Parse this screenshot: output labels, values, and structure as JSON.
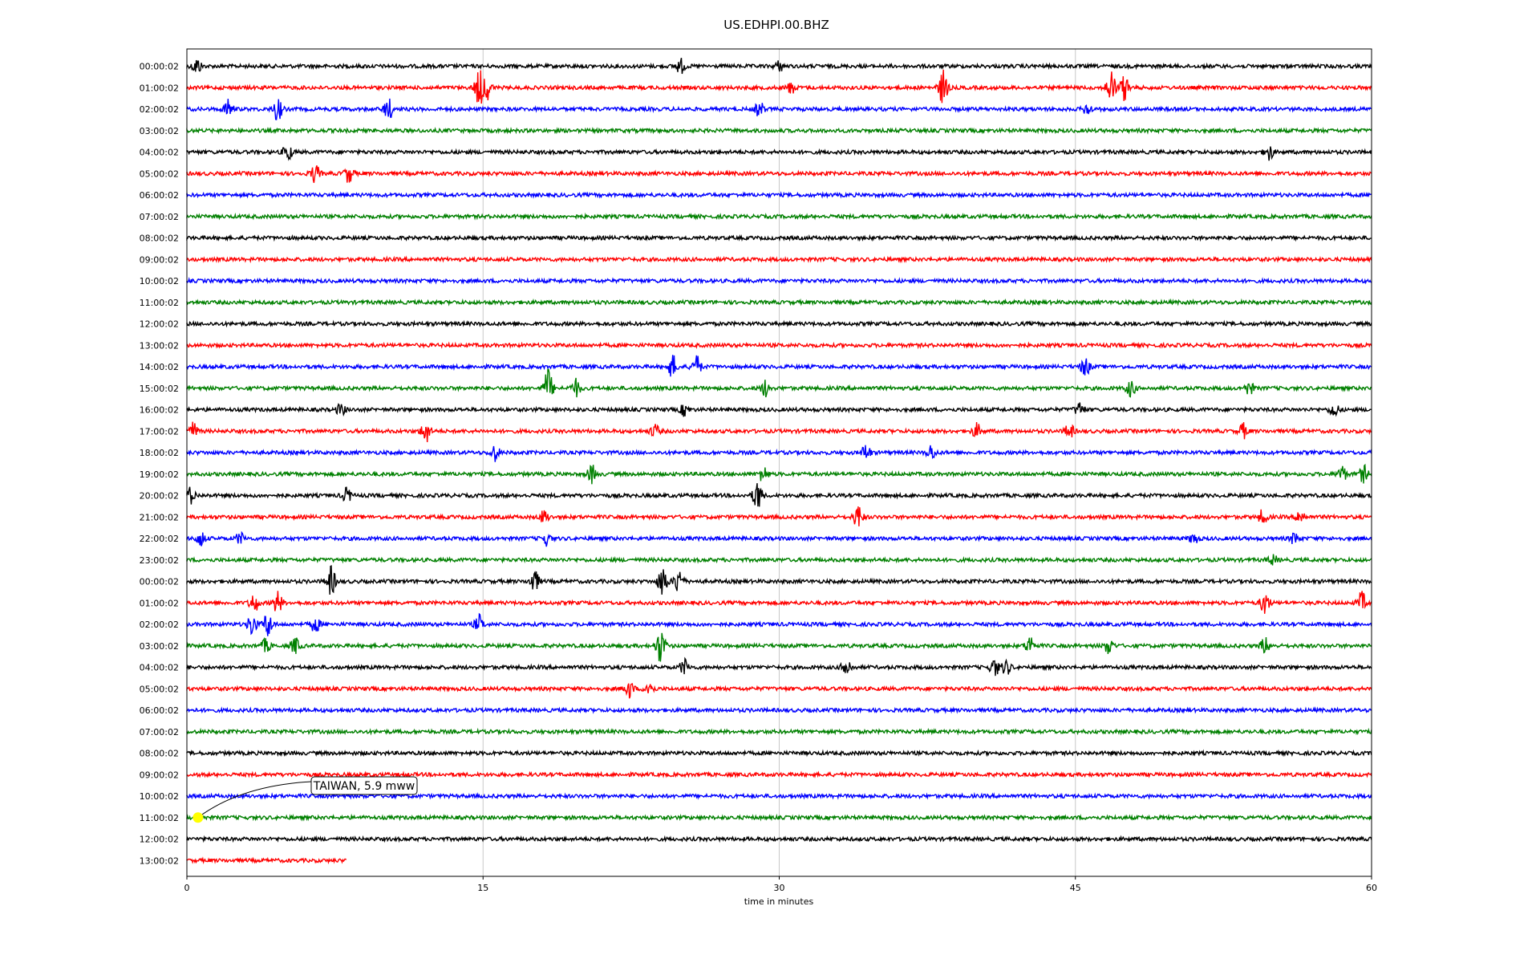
{
  "chart_data": {
    "type": "line",
    "title": "US.EDHPI.00.BHZ",
    "xlabel": "time in minutes",
    "ylabel": "",
    "xlim": [
      0,
      60
    ],
    "x_ticks": [
      "0",
      "15",
      "30",
      "45",
      "60"
    ],
    "x_tick_values": [
      0,
      15,
      30,
      45,
      60
    ],
    "grid": "vertical",
    "trace_colors": [
      "#000000",
      "#ff0000",
      "#0000ff",
      "#008000"
    ],
    "rows": [
      {
        "label": "00:00:02",
        "end": 60,
        "events": [
          [
            0.5,
            10
          ],
          [
            25,
            9
          ],
          [
            30,
            6
          ]
        ]
      },
      {
        "label": "01:00:02",
        "end": 60,
        "events": [
          [
            14.8,
            22
          ],
          [
            15.2,
            14
          ],
          [
            30.6,
            7
          ],
          [
            38.3,
            22
          ],
          [
            46.8,
            22
          ],
          [
            47.5,
            16
          ]
        ]
      },
      {
        "label": "02:00:02",
        "end": 60,
        "events": [
          [
            2.1,
            12
          ],
          [
            4.6,
            14
          ],
          [
            10.2,
            13
          ],
          [
            29,
            9
          ],
          [
            45.6,
            7
          ]
        ]
      },
      {
        "label": "03:00:02",
        "end": 60,
        "events": []
      },
      {
        "label": "04:00:02",
        "end": 60,
        "events": [
          [
            5.1,
            11
          ],
          [
            54.8,
            10
          ]
        ]
      },
      {
        "label": "05:00:02",
        "end": 60,
        "events": [
          [
            6.5,
            11
          ],
          [
            8.2,
            11
          ]
        ]
      },
      {
        "label": "06:00:02",
        "end": 60,
        "events": []
      },
      {
        "label": "07:00:02",
        "end": 60,
        "events": []
      },
      {
        "label": "08:00:02",
        "end": 60,
        "events": []
      },
      {
        "label": "09:00:02",
        "end": 60,
        "events": []
      },
      {
        "label": "10:00:02",
        "end": 60,
        "events": []
      },
      {
        "label": "11:00:02",
        "end": 60,
        "events": []
      },
      {
        "label": "12:00:02",
        "end": 60,
        "events": []
      },
      {
        "label": "13:00:02",
        "end": 60,
        "events": []
      },
      {
        "label": "14:00:02",
        "end": 60,
        "events": [
          [
            24.6,
            14
          ],
          [
            25.8,
            14
          ],
          [
            45.5,
            12
          ]
        ]
      },
      {
        "label": "15:00:02",
        "end": 60,
        "events": [
          [
            18.3,
            24
          ],
          [
            19.7,
            11
          ],
          [
            29.3,
            10
          ],
          [
            47.8,
            10
          ],
          [
            53.8,
            8
          ]
        ]
      },
      {
        "label": "16:00:02",
        "end": 60,
        "events": [
          [
            7.8,
            7
          ],
          [
            25.2,
            7
          ],
          [
            45.2,
            9
          ],
          [
            58.1,
            9
          ]
        ]
      },
      {
        "label": "17:00:02",
        "end": 60,
        "events": [
          [
            0.3,
            11
          ],
          [
            12.1,
            15
          ],
          [
            23.7,
            8
          ],
          [
            40,
            9
          ],
          [
            44.7,
            9
          ],
          [
            53.5,
            9
          ]
        ]
      },
      {
        "label": "18:00:02",
        "end": 60,
        "events": [
          [
            15.6,
            10
          ],
          [
            34.4,
            10
          ],
          [
            37.7,
            9
          ]
        ]
      },
      {
        "label": "19:00:02",
        "end": 60,
        "events": [
          [
            20.5,
            11
          ],
          [
            29.2,
            10
          ],
          [
            58.5,
            10
          ],
          [
            59.6,
            10
          ]
        ]
      },
      {
        "label": "20:00:02",
        "end": 60,
        "events": [
          [
            0.2,
            10
          ],
          [
            8.1,
            9
          ],
          [
            28.9,
            20
          ]
        ]
      },
      {
        "label": "21:00:02",
        "end": 60,
        "events": [
          [
            18.1,
            8
          ],
          [
            34,
            15
          ],
          [
            54.5,
            9
          ],
          [
            56.4,
            9
          ]
        ]
      },
      {
        "label": "22:00:02",
        "end": 60,
        "events": [
          [
            0.7,
            10
          ],
          [
            2.7,
            7
          ],
          [
            18.2,
            8
          ],
          [
            51,
            7
          ],
          [
            56.1,
            7
          ]
        ]
      },
      {
        "label": "23:00:02",
        "end": 60,
        "events": [
          [
            55,
            6
          ]
        ]
      },
      {
        "label": "00:00:02",
        "end": 60,
        "events": [
          [
            7.3,
            18
          ],
          [
            17.6,
            14
          ],
          [
            24.1,
            20
          ],
          [
            24.9,
            16
          ]
        ]
      },
      {
        "label": "01:00:02",
        "end": 60,
        "events": [
          [
            3.4,
            12
          ],
          [
            4.6,
            14
          ],
          [
            54.6,
            15
          ],
          [
            59.5,
            13
          ]
        ]
      },
      {
        "label": "02:00:02",
        "end": 60,
        "events": [
          [
            3.3,
            14
          ],
          [
            4.1,
            16
          ],
          [
            6.5,
            10
          ],
          [
            14.8,
            11
          ]
        ]
      },
      {
        "label": "03:00:02",
        "end": 60,
        "events": [
          [
            4,
            8
          ],
          [
            5.5,
            10
          ],
          [
            24,
            22
          ],
          [
            42.7,
            12
          ],
          [
            46.7,
            10
          ],
          [
            54.6,
            10
          ]
        ]
      },
      {
        "label": "04:00:02",
        "end": 60,
        "events": [
          [
            25.2,
            10
          ],
          [
            33.4,
            12
          ],
          [
            40.9,
            11
          ],
          [
            41.5,
            9
          ]
        ]
      },
      {
        "label": "05:00:02",
        "end": 60,
        "events": [
          [
            22.4,
            11
          ],
          [
            23.4,
            10
          ]
        ]
      },
      {
        "label": "06:00:02",
        "end": 60,
        "events": []
      },
      {
        "label": "07:00:02",
        "end": 60,
        "events": []
      },
      {
        "label": "08:00:02",
        "end": 60,
        "events": []
      },
      {
        "label": "09:00:02",
        "end": 60,
        "events": []
      },
      {
        "label": "10:00:02",
        "end": 60,
        "events": []
      },
      {
        "label": "11:00:02",
        "end": 60,
        "events": []
      },
      {
        "label": "12:00:02",
        "end": 60,
        "events": []
      },
      {
        "label": "13:00:02",
        "end": 8.1,
        "events": []
      }
    ],
    "annotation": {
      "text": "TAIWAN, 5.9 mww",
      "row_index": 35,
      "minute": 0.4,
      "marker_color": "#ffff00"
    }
  }
}
